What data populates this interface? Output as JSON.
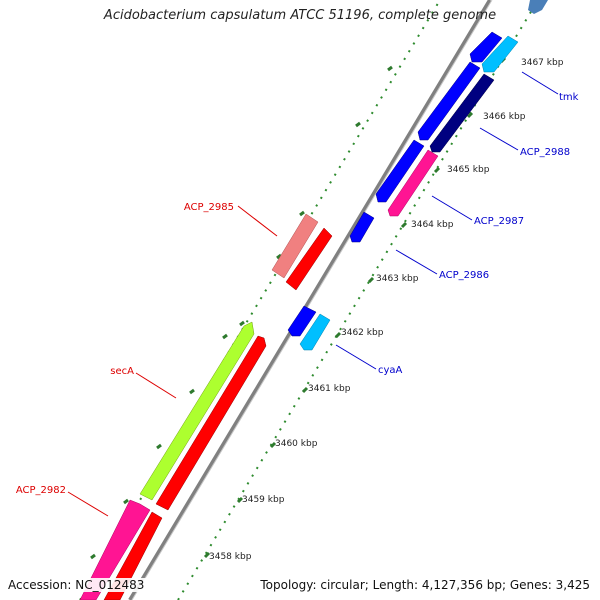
{
  "title": "Acidobacterium capsulatum ATCC 51196, complete genome",
  "footer": {
    "accession": "Accession: NC_012483",
    "topology": "Topology: circular; Length: 4,127,356 bp; Genes: 3,425"
  },
  "colors": {
    "backbone": "#8a8a8a",
    "dot_track": "#2e8b2e",
    "tick_dark": "#2e7a2e",
    "label_left": "#dd0000",
    "label_right": "#0000cc"
  },
  "ruler": {
    "unit": "kbp",
    "ticks": [
      {
        "label": "3458 kbp"
      },
      {
        "label": "3459 kbp"
      },
      {
        "label": "3460 kbp"
      },
      {
        "label": "3461 kbp"
      },
      {
        "label": "3462 kbp"
      },
      {
        "label": "3463 kbp"
      },
      {
        "label": "3464 kbp"
      },
      {
        "label": "3465 kbp"
      },
      {
        "label": "3466 kbp"
      },
      {
        "label": "3467 kbp"
      }
    ]
  },
  "genes_left": [
    {
      "name": "ACP_2985",
      "color": "#f08080"
    },
    {
      "name": "secA",
      "color": "#adff2f"
    },
    {
      "name": "ACP_2982",
      "color": "#ff1493"
    }
  ],
  "genes_right": [
    {
      "name": "tmk",
      "color": "#00bfff"
    },
    {
      "name": "ACP_2988",
      "color": "#000080"
    },
    {
      "name": "ACP_2987",
      "color": "#ff1493"
    },
    {
      "name": "ACP_2986",
      "color": "#0000ff"
    },
    {
      "name": "cyaA",
      "color": "#00bfff"
    }
  ]
}
